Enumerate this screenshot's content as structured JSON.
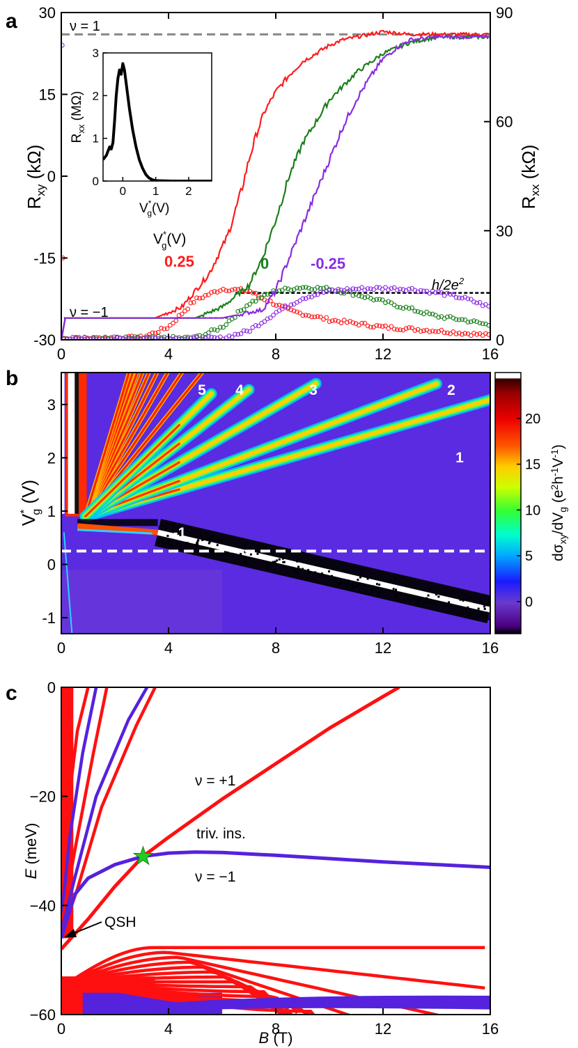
{
  "chart_data": [
    {
      "panel": "a",
      "type": "line",
      "x_ticks": [
        "0",
        "4",
        "8",
        "12",
        "16"
      ],
      "y_left_ticks": [
        "30",
        "15",
        "0",
        "-15",
        "-30"
      ],
      "y_right_ticks": [
        "90",
        "60",
        "30",
        "0"
      ],
      "ylabel_left": "R",
      "ylabel_left_sub": "xy",
      "ylabel_left_unit": " (kΩ)",
      "ylabel_right": "R",
      "ylabel_right_sub": "xx",
      "ylabel_right_unit": " (kΩ)",
      "xlim": [
        0,
        16
      ],
      "ylim_left": [
        -30,
        30
      ],
      "ylim_right": [
        0,
        90
      ],
      "ref_lines": [
        {
          "label": "ν = 1",
          "axis": "left",
          "y": 26,
          "color": "#888888"
        },
        {
          "label": "ν = −1",
          "axis": "left",
          "y": -26,
          "color": "#000000"
        },
        {
          "label": "h/2e2",
          "axis": "right",
          "y": 12.9,
          "color": "#000000"
        }
      ],
      "legend_title": "V",
      "legend_title_sup": "*",
      "legend_title_sub": "g",
      "legend_title_unit": "(V)",
      "series": [
        {
          "name": "0.25",
          "color": "#ff1a1a",
          "axis_rxy": true,
          "rxy_x": [
            0.15,
            3.5,
            4.5,
            5.5,
            6.2,
            6.7,
            7.0,
            7.3,
            7.6,
            8.0,
            8.5,
            9.0,
            9.5,
            10.0,
            10.5,
            11.0,
            11.5,
            12.0,
            13.0,
            16.0
          ],
          "rxy_y": [
            -26,
            -26,
            -24,
            -18,
            -11,
            -3,
            3,
            8,
            12,
            15.5,
            18.5,
            21,
            22.5,
            24,
            25,
            25.5,
            26,
            26.5,
            26,
            26
          ],
          "rxx_x": [
            0.1,
            3.0,
            4.0,
            5.0,
            6.0,
            7.0,
            7.5,
            8.5,
            10.0,
            12.0,
            14.0,
            16.0
          ],
          "rxx_y": [
            0.3,
            0.6,
            3.5,
            11,
            14,
            13.5,
            11.5,
            8,
            5.5,
            3.5,
            2.5,
            1.2
          ]
        },
        {
          "name": "0",
          "color": "#1a7f1a",
          "axis_rxy": true,
          "rxy_x": [
            0.15,
            5.0,
            6.0,
            7.0,
            7.5,
            8.0,
            8.5,
            9.0,
            9.5,
            10.0,
            11.0,
            12.0,
            13.0,
            14.0,
            16.0
          ],
          "rxy_y": [
            -26,
            -26,
            -24,
            -20,
            -15,
            -8,
            0,
            6,
            10,
            14,
            19,
            22.5,
            24.5,
            25.5,
            25.5
          ],
          "rxx_x": [
            0.1,
            5.0,
            6.0,
            7.0,
            8.0,
            9.0,
            10.0,
            11.0,
            12.0,
            13.0,
            14.0,
            15.0,
            16.0
          ],
          "rxx_y": [
            0.3,
            0.5,
            3.5,
            10,
            13.5,
            14.5,
            14,
            12.5,
            10.5,
            8.5,
            6.5,
            5.5,
            4
          ]
        },
        {
          "name": "-0.25",
          "color": "#8a2be2",
          "axis_rxy": true,
          "rxy_x": [
            0.15,
            6.0,
            7.5,
            8.0,
            8.5,
            9.0,
            9.5,
            10.0,
            10.5,
            11.0,
            11.5,
            12.0,
            12.5,
            13.0,
            14.0,
            16.0
          ],
          "rxy_y": [
            -26,
            -26,
            -24.5,
            -21,
            -15,
            -9,
            -3,
            3,
            9,
            14,
            18,
            21.5,
            23.5,
            25,
            25.5,
            25.5
          ],
          "rxx_x": [
            0.1,
            6.0,
            7.0,
            8.0,
            9.0,
            10.0,
            11.0,
            12.0,
            13.0,
            14.0,
            15.0,
            16.0
          ],
          "rxx_y": [
            0.3,
            0.4,
            2.5,
            7.5,
            11.5,
            13.5,
            14,
            14.2,
            14,
            13,
            11.5,
            9
          ]
        }
      ],
      "inset": {
        "xlabel": "V",
        "xlabel_sup": "*",
        "xlabel_sub": "g",
        "xlabel_unit": "(V)",
        "ylabel": "R",
        "ylabel_sub": "xx",
        "ylabel_unit": " (MΩ)",
        "x_ticks": [
          "0",
          "1",
          "2"
        ],
        "y_ticks": [
          "3",
          "2",
          "1",
          "0"
        ],
        "xlim": [
          -0.6,
          2.7
        ],
        "ylim": [
          0,
          3
        ],
        "x": [
          -0.6,
          -0.5,
          -0.4,
          -0.35,
          -0.3,
          -0.25,
          -0.2,
          -0.15,
          -0.1,
          -0.05,
          0,
          0.05,
          0.1,
          0.2,
          0.3,
          0.4,
          0.5,
          0.6,
          0.7,
          0.8,
          0.9,
          1.0,
          1.5,
          2.7
        ],
        "y": [
          0.5,
          0.6,
          0.8,
          0.75,
          0.9,
          1.4,
          2.0,
          2.4,
          2.6,
          2.5,
          2.75,
          2.6,
          2.3,
          1.7,
          1.2,
          0.8,
          0.5,
          0.3,
          0.15,
          0.07,
          0.03,
          0.01,
          0.0,
          0.0
        ]
      }
    },
    {
      "panel": "b",
      "type": "heatmap",
      "x_ticks": [
        "0",
        "4",
        "8",
        "12",
        "16"
      ],
      "y_ticks": [
        "3",
        "2",
        "1",
        "0",
        "-1"
      ],
      "ylabel": "V",
      "ylabel_sup": "*",
      "ylabel_sub": "g",
      "ylabel_unit": " (V)",
      "xlim": [
        0,
        16
      ],
      "ylim": [
        -1.3,
        3.6
      ],
      "dashed_line_y": 0.25,
      "colorbar_label": "dσ",
      "colorbar_label_sub1": "xy",
      "colorbar_label_mid": "/dV",
      "colorbar_label_sub2": "g",
      "colorbar_label_unit": " (e",
      "colorbar_label_unit_sup1": "2",
      "colorbar_label_unit_mid": "h",
      "colorbar_label_unit_sup2": "-1",
      "colorbar_label_unit_mid2": "V",
      "colorbar_label_unit_sup3": "-1",
      "colorbar_label_unit_end": ")",
      "colorbar_ticks": [
        "20",
        "15",
        "10",
        "5",
        "0"
      ],
      "colorbar_range": [
        -3.5,
        25
      ],
      "fan_lines": [
        {
          "label": "1",
          "slope": 0.145,
          "end_x": 16
        },
        {
          "label": "2",
          "slope": 0.19,
          "end_x": 14.0
        },
        {
          "label": "3",
          "slope": 0.29,
          "end_x": 9.5
        },
        {
          "label": "4",
          "slope": 0.39,
          "end_x": 7.0
        },
        {
          "label": "5",
          "slope": 0.49,
          "end_x": 5.6
        }
      ],
      "region_labels": [
        "5",
        "4",
        "3",
        "2",
        "1",
        "-1"
      ],
      "neg_line": {
        "x": [
          3.6,
          16
        ],
        "y": [
          0.6,
          -0.85
        ]
      }
    },
    {
      "panel": "c",
      "type": "line",
      "x_ticks": [
        "0",
        "4",
        "8",
        "12",
        "16"
      ],
      "y_ticks": [
        "0",
        "−20",
        "−40",
        "−60"
      ],
      "xlabel": "B",
      "xlabel_unit": " (T)",
      "ylabel": "E",
      "ylabel_unit": " (meV)",
      "xlim": [
        0,
        16
      ],
      "ylim": [
        -60,
        0
      ],
      "annotations": [
        "ν = +1",
        "triv. ins.",
        "ν = −1",
        "QSH"
      ],
      "star": {
        "x": 3.05,
        "y": -31
      },
      "series": [
        {
          "name": "",
          "color": "#ff1010",
          "x": [
            0,
            1,
            2,
            3.05,
            4,
            6,
            8,
            10,
            12,
            12.6
          ],
          "y": [
            -48,
            -42.5,
            -36.5,
            -31,
            -27.5,
            -20.5,
            -14,
            -7.5,
            -1.7,
            0
          ]
        },
        {
          "name": "",
          "color": "#5522dd",
          "x": [
            0,
            0.5,
            1,
            2,
            3.05,
            4,
            5,
            6,
            8,
            10,
            12,
            14,
            16
          ],
          "y": [
            -46,
            -38,
            -35,
            -32.5,
            -31,
            -30.4,
            -30.2,
            -30.3,
            -30.8,
            -31.4,
            -32,
            -32.5,
            -33
          ]
        }
      ]
    }
  ],
  "panel_labels": [
    "a",
    "b",
    "c"
  ],
  "colors": {
    "red": "#ff1010",
    "green": "#1a7f1a",
    "purple": "#8a2be2",
    "blue": "#5522dd",
    "heat_bg": "#5a2be0"
  }
}
